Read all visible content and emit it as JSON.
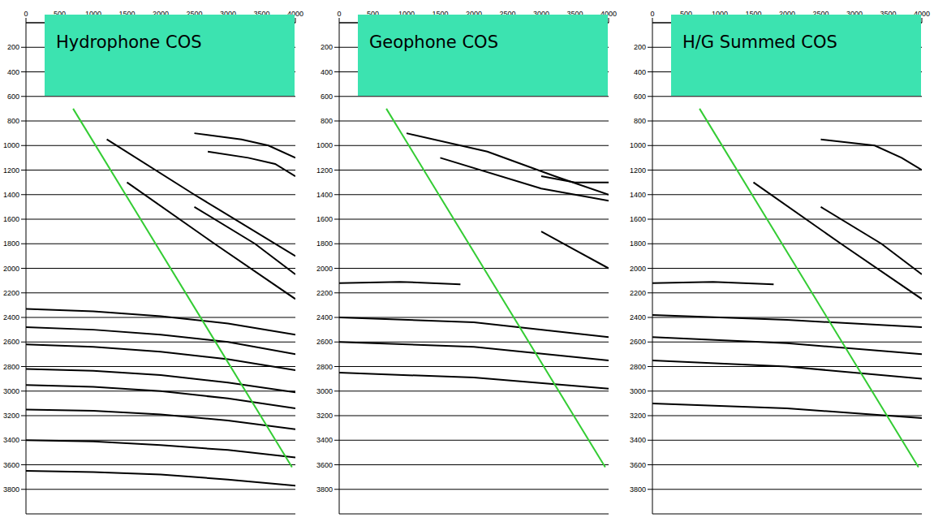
{
  "chart_data": [
    {
      "type": "line",
      "title": "Hydrophone COS",
      "xlim": [
        0,
        4000
      ],
      "xticks": [
        0,
        500,
        1000,
        1500,
        2000,
        2500,
        3000,
        3500,
        4000
      ],
      "ylim": [
        0,
        4000
      ],
      "yticks": [
        200,
        400,
        600,
        800,
        1000,
        1200,
        1400,
        1600,
        1800,
        2000,
        2200,
        2400,
        2600,
        2800,
        3000,
        3200,
        3400,
        3600,
        3800
      ],
      "grid": true,
      "series": [
        {
          "color": "#000000",
          "x": [
            0,
            1000,
            2000,
            3000,
            4000
          ],
          "values": [
            2330,
            2350,
            2390,
            2450,
            2540
          ]
        },
        {
          "color": "#000000",
          "x": [
            0,
            1000,
            2000,
            3000,
            4000
          ],
          "values": [
            2480,
            2500,
            2540,
            2600,
            2700
          ]
        },
        {
          "color": "#000000",
          "x": [
            0,
            1000,
            2000,
            3000,
            4000
          ],
          "values": [
            2620,
            2640,
            2680,
            2740,
            2830
          ]
        },
        {
          "color": "#000000",
          "x": [
            0,
            1000,
            2000,
            3000,
            4000
          ],
          "values": [
            2820,
            2835,
            2870,
            2930,
            3010
          ]
        },
        {
          "color": "#000000",
          "x": [
            0,
            1000,
            2000,
            3000,
            4000
          ],
          "values": [
            2950,
            2965,
            3000,
            3060,
            3140
          ]
        },
        {
          "color": "#000000",
          "x": [
            0,
            1000,
            2000,
            3000,
            4000
          ],
          "values": [
            3150,
            3160,
            3190,
            3240,
            3310
          ]
        },
        {
          "color": "#000000",
          "x": [
            0,
            1000,
            2000,
            3000,
            4000
          ],
          "values": [
            3400,
            3410,
            3440,
            3480,
            3540
          ]
        },
        {
          "color": "#000000",
          "x": [
            0,
            1000,
            2000,
            3000,
            4000
          ],
          "values": [
            3650,
            3660,
            3680,
            3720,
            3770
          ]
        },
        {
          "color": "#000000",
          "x": [
            2500,
            3200,
            3600,
            4000
          ],
          "values": [
            900,
            950,
            1000,
            1100
          ]
        },
        {
          "color": "#000000",
          "x": [
            2700,
            3300,
            3700,
            4000
          ],
          "values": [
            1050,
            1100,
            1150,
            1250
          ]
        },
        {
          "color": "#000000",
          "x": [
            1200,
            2500,
            4000
          ],
          "values": [
            950,
            1400,
            1900
          ]
        },
        {
          "color": "#000000",
          "x": [
            1500,
            2800,
            4000
          ],
          "values": [
            1300,
            1800,
            2250
          ]
        },
        {
          "color": "#000000",
          "x": [
            2500,
            3400,
            4000
          ],
          "values": [
            1500,
            1800,
            2050
          ]
        },
        {
          "color": "#33cc33",
          "x": [
            700,
            3950
          ],
          "values": [
            700,
            3620
          ]
        }
      ]
    },
    {
      "type": "line",
      "title": "Geophone COS",
      "xlim": [
        0,
        4000
      ],
      "xticks": [
        0,
        500,
        1000,
        1500,
        2000,
        2500,
        3000,
        3500,
        4000
      ],
      "ylim": [
        0,
        4000
      ],
      "yticks": [
        200,
        400,
        600,
        800,
        1000,
        1200,
        1400,
        1600,
        1800,
        2000,
        2200,
        2400,
        2600,
        2800,
        3000,
        3200,
        3400,
        3600,
        3800
      ],
      "grid": true,
      "series": [
        {
          "color": "#000000",
          "x": [
            0,
            900,
            1800
          ],
          "values": [
            2120,
            2110,
            2130
          ]
        },
        {
          "color": "#000000",
          "x": [
            1000,
            2200,
            3200,
            4000
          ],
          "values": [
            900,
            1050,
            1250,
            1400
          ]
        },
        {
          "color": "#000000",
          "x": [
            1500,
            3000,
            4000
          ],
          "values": [
            1100,
            1350,
            1450
          ]
        },
        {
          "color": "#000000",
          "x": [
            3000,
            3500,
            4000
          ],
          "values": [
            1700,
            1850,
            2000
          ]
        },
        {
          "color": "#000000",
          "x": [
            3000,
            3500,
            4000
          ],
          "values": [
            1250,
            1300,
            1300
          ]
        },
        {
          "color": "#000000",
          "x": [
            0,
            2000,
            4000
          ],
          "values": [
            2400,
            2440,
            2560
          ]
        },
        {
          "color": "#000000",
          "x": [
            0,
            2000,
            4000
          ],
          "values": [
            2600,
            2640,
            2750
          ]
        },
        {
          "color": "#000000",
          "x": [
            0,
            2000,
            4000
          ],
          "values": [
            2850,
            2890,
            2980
          ]
        },
        {
          "color": "#33cc33",
          "x": [
            700,
            3950
          ],
          "values": [
            700,
            3620
          ]
        }
      ]
    },
    {
      "type": "line",
      "title": "H/G Summed COS",
      "xlim": [
        0,
        4000
      ],
      "xticks": [
        0,
        500,
        1000,
        1500,
        2000,
        2500,
        3000,
        3500,
        4000
      ],
      "ylim": [
        0,
        4000
      ],
      "yticks": [
        200,
        400,
        600,
        800,
        1000,
        1200,
        1400,
        1600,
        1800,
        2000,
        2200,
        2400,
        2600,
        2800,
        3000,
        3200,
        3400,
        3600,
        3800
      ],
      "grid": true,
      "series": [
        {
          "color": "#000000",
          "x": [
            2500,
            3300,
            3700,
            4000
          ],
          "values": [
            950,
            1000,
            1100,
            1200
          ]
        },
        {
          "color": "#000000",
          "x": [
            1500,
            2800,
            4000
          ],
          "values": [
            1300,
            1800,
            2250
          ]
        },
        {
          "color": "#000000",
          "x": [
            2500,
            3400,
            4000
          ],
          "values": [
            1500,
            1800,
            2050
          ]
        },
        {
          "color": "#000000",
          "x": [
            0,
            900,
            1800
          ],
          "values": [
            2120,
            2110,
            2130
          ]
        },
        {
          "color": "#000000",
          "x": [
            0,
            2000,
            4000
          ],
          "values": [
            2380,
            2420,
            2480
          ]
        },
        {
          "color": "#000000",
          "x": [
            0,
            2000,
            4000
          ],
          "values": [
            2560,
            2610,
            2700
          ]
        },
        {
          "color": "#000000",
          "x": [
            0,
            2000,
            4000
          ],
          "values": [
            2750,
            2800,
            2900
          ]
        },
        {
          "color": "#000000",
          "x": [
            0,
            2000,
            4000
          ],
          "values": [
            3100,
            3140,
            3220
          ]
        },
        {
          "color": "#33cc33",
          "x": [
            700,
            3950
          ],
          "values": [
            700,
            3620
          ]
        }
      ]
    }
  ]
}
